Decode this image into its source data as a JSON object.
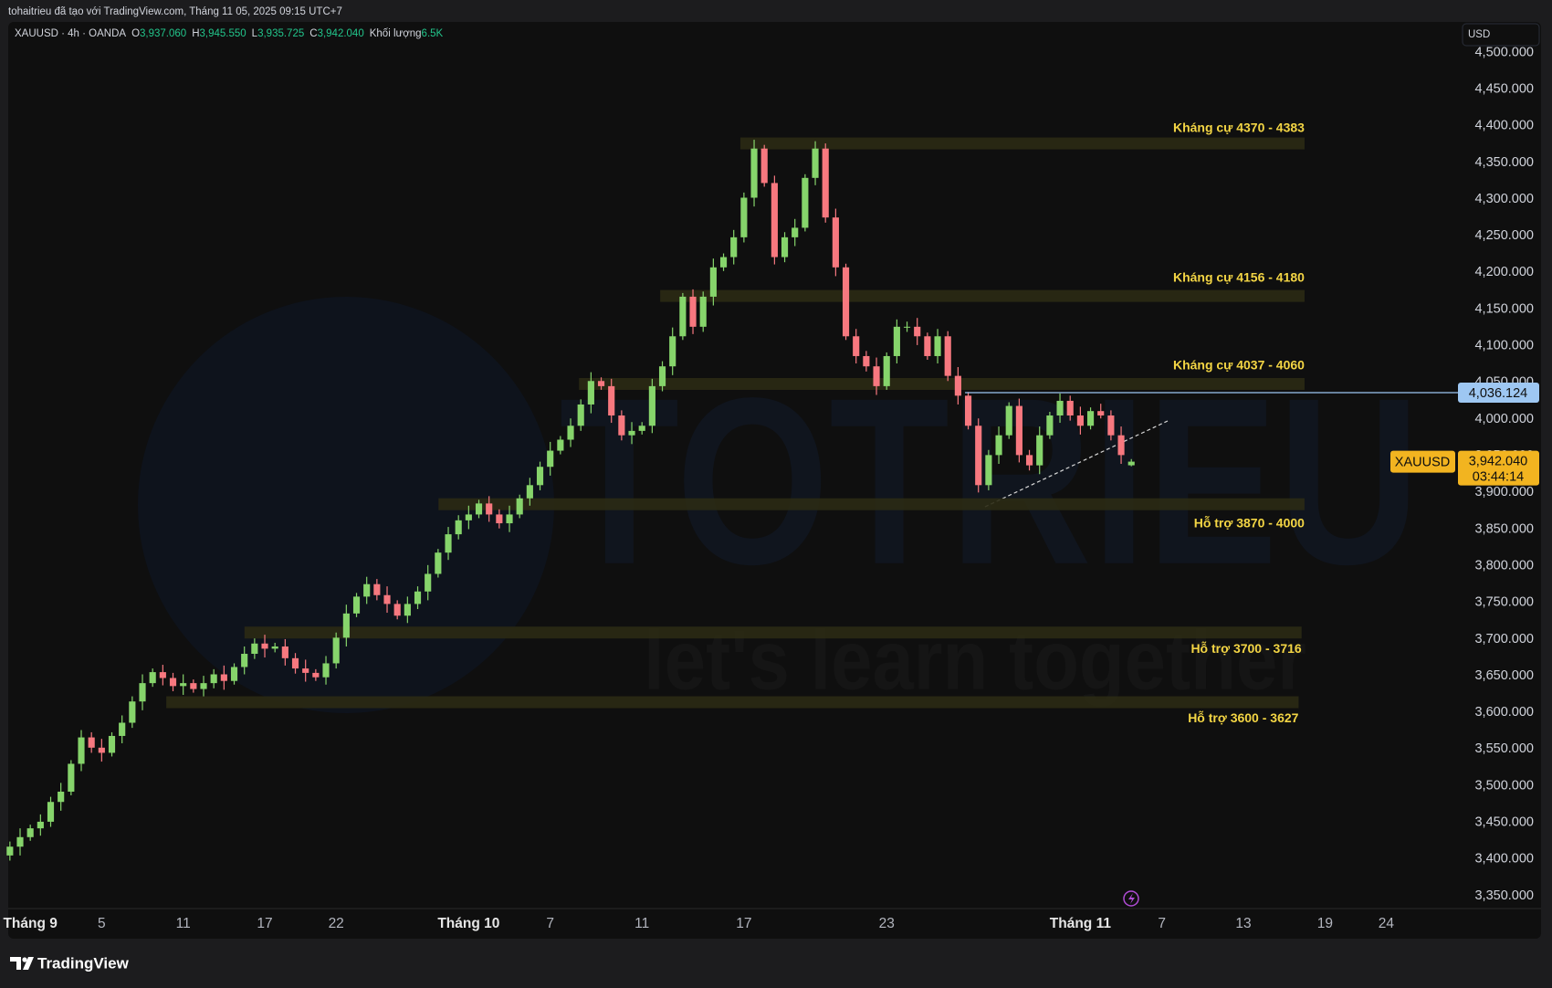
{
  "header": {
    "attribution": "tohaitrieu đã tạo với TradingView.com, Tháng 11 05, 2025 09:15 UTC+7",
    "legend": {
      "symbol": "XAUUSD · 4h · OANDA",
      "items": [
        {
          "key": "O",
          "value": "3,937.060"
        },
        {
          "key": "H",
          "value": "3,945.550"
        },
        {
          "key": "L",
          "value": "3,935.725"
        },
        {
          "key": "C",
          "value": "3,942.040"
        },
        {
          "key": "Khối lượng",
          "value": "6.5K"
        }
      ]
    },
    "currency": "USD"
  },
  "watermark": {
    "title": "TOTRIEU",
    "tagline": "let's learn together"
  },
  "footer": {
    "brand": "TradingView"
  },
  "chart_data": {
    "type": "candlestick",
    "categories": [
      null,
      null,
      "Tháng 9",
      null,
      null,
      null,
      null,
      null,
      null,
      "5",
      null,
      null,
      null,
      null,
      null,
      null,
      null,
      "11",
      null,
      null,
      null,
      null,
      null,
      null,
      null,
      "17",
      null,
      null,
      null,
      null,
      null,
      null,
      "22",
      null,
      null,
      null,
      null,
      null,
      null,
      null,
      null,
      null,
      null,
      null,
      null,
      "Tháng 10",
      null,
      null,
      null,
      null,
      null,
      null,
      null,
      "7",
      null,
      null,
      null,
      null,
      null,
      null,
      null,
      null,
      "11",
      null,
      null,
      null,
      null,
      null,
      null,
      null,
      null,
      null,
      "17",
      null,
      null,
      null,
      null,
      null,
      null,
      null,
      null,
      null,
      null,
      null,
      null,
      null,
      "23",
      null,
      null,
      null,
      null,
      null,
      null,
      null,
      null,
      null,
      null,
      null,
      null,
      null,
      null,
      null,
      null,
      null,
      null,
      "Tháng 11",
      null,
      null,
      null,
      null,
      null,
      null,
      null,
      "7",
      null,
      null,
      null,
      null,
      null,
      null,
      null,
      "13",
      null,
      null,
      null,
      null,
      null,
      null,
      null,
      "19",
      null,
      null,
      null,
      null,
      null,
      "24",
      null,
      null,
      null,
      null,
      null,
      null
    ],
    "series": {
      "open": [
        3405,
        3417,
        3430,
        3442,
        3451,
        3478,
        3492,
        3530,
        3566,
        3552,
        3545,
        3568,
        3586,
        3615,
        3640,
        3655,
        3647,
        3636,
        3640,
        3632,
        3640,
        3652,
        3643,
        3662,
        3680,
        3694,
        3687,
        3690,
        3674,
        3660,
        3654,
        3648,
        3667,
        3702,
        3735,
        3758,
        3775,
        3760,
        3748,
        3732,
        3748,
        3765,
        3789,
        3818,
        3843,
        3862,
        3870,
        3885,
        3870,
        3858,
        3870,
        3892,
        3910,
        3935,
        3957,
        3972,
        3991,
        4020,
        4052,
        4045,
        4005,
        3978,
        3984,
        3991,
        4045,
        4072,
        4113,
        4167,
        4126,
        4167,
        4207,
        4221,
        4248,
        4302,
        4369,
        4322,
        4221,
        4248,
        4261,
        4329,
        4369,
        4275,
        4207,
        4113,
        4086,
        4072,
        4045,
        4086,
        4126,
        4126,
        4113,
        4086,
        4113,
        4059,
        4032,
        3991,
        3910,
        3951,
        3978,
        4018,
        3951,
        3937,
        3978,
        4005,
        4025,
        4005,
        3991,
        4011,
        4005,
        3978,
        3937.06,
        null,
        null,
        null,
        null,
        null,
        null,
        null,
        null,
        null,
        null,
        null,
        null,
        null,
        null,
        null,
        null,
        null,
        null,
        null,
        null,
        null,
        null,
        null,
        null,
        null,
        null,
        null,
        null,
        null,
        null,
        null
      ],
      "high": [
        3424,
        3442,
        3447,
        3461,
        3485,
        3504,
        3535,
        3576,
        3573,
        3564,
        3573,
        3596,
        3622,
        3652,
        3660,
        3665,
        3654,
        3652,
        3645,
        3650,
        3659,
        3664,
        3667,
        3690,
        3701,
        3706,
        3695,
        3700,
        3681,
        3672,
        3659,
        3677,
        3709,
        3747,
        3763,
        3785,
        3782,
        3772,
        3753,
        3758,
        3772,
        3801,
        3823,
        3853,
        3869,
        3882,
        3890,
        3895,
        3877,
        3882,
        3897,
        3920,
        3942,
        3969,
        3977,
        4001,
        4027,
        4064,
        4057,
        4055,
        4012,
        3996,
        3996,
        4055,
        4079,
        4125,
        4172,
        4177,
        4174,
        4219,
        4226,
        4258,
        4309,
        4381,
        4374,
        4332,
        4255,
        4273,
        4334,
        4379,
        4376,
        4287,
        4212,
        4123,
        4093,
        4084,
        4091,
        4136,
        4133,
        4138,
        4118,
        4123,
        4120,
        4071,
        4037,
        4001,
        3958,
        3990,
        4023,
        4028,
        3958,
        3990,
        4010,
        4035,
        4032,
        4017,
        4016,
        4021,
        4012,
        3990,
        3945.55,
        null,
        null,
        null,
        null,
        null,
        null,
        null,
        null,
        null,
        null,
        null,
        null,
        null,
        null,
        null,
        null,
        null,
        null,
        null,
        null,
        null,
        null,
        null,
        null,
        null,
        null,
        null,
        null,
        null,
        null,
        null
      ],
      "low": [
        3398,
        3405,
        3425,
        3432,
        3444,
        3466,
        3487,
        3520,
        3545,
        3533,
        3540,
        3558,
        3579,
        3603,
        3635,
        3637,
        3629,
        3624,
        3627,
        3622,
        3633,
        3631,
        3638,
        3652,
        3673,
        3675,
        3682,
        3664,
        3653,
        3642,
        3643,
        3638,
        3660,
        3690,
        3730,
        3748,
        3753,
        3736,
        3727,
        3722,
        3741,
        3753,
        3784,
        3808,
        3836,
        3850,
        3865,
        3860,
        3851,
        3846,
        3865,
        3882,
        3903,
        3923,
        3952,
        3962,
        3984,
        4008,
        4040,
        3995,
        3971,
        3966,
        3979,
        3981,
        4038,
        4060,
        4108,
        4116,
        4119,
        4155,
        4202,
        4211,
        4241,
        4290,
        4317,
        4211,
        4214,
        4236,
        4256,
        4319,
        4268,
        4195,
        4108,
        4076,
        4065,
        4033,
        4040,
        4076,
        4119,
        4101,
        4081,
        4076,
        4052,
        4020,
        3986,
        3900,
        3903,
        3939,
        3973,
        3941,
        3930,
        3925,
        3973,
        3995,
        3998,
        3979,
        3986,
        4001,
        3971,
        3939,
        3935.725,
        null,
        null,
        null,
        null,
        null,
        null,
        null,
        null,
        null,
        null,
        null,
        null,
        null,
        null,
        null,
        null,
        null,
        null,
        null,
        null,
        null,
        null,
        null,
        null,
        null,
        null,
        null,
        null,
        null,
        null,
        null
      ],
      "close": [
        3417,
        3430,
        3442,
        3451,
        3478,
        3492,
        3530,
        3566,
        3552,
        3545,
        3568,
        3586,
        3615,
        3640,
        3655,
        3647,
        3636,
        3640,
        3632,
        3640,
        3652,
        3643,
        3662,
        3680,
        3694,
        3687,
        3690,
        3674,
        3660,
        3654,
        3648,
        3667,
        3702,
        3735,
        3758,
        3775,
        3760,
        3748,
        3732,
        3748,
        3765,
        3789,
        3818,
        3843,
        3862,
        3870,
        3885,
        3870,
        3858,
        3870,
        3892,
        3910,
        3935,
        3957,
        3972,
        3991,
        4020,
        4052,
        4045,
        4005,
        3978,
        3984,
        3991,
        4045,
        4072,
        4113,
        4167,
        4126,
        4167,
        4207,
        4221,
        4248,
        4302,
        4369,
        4322,
        4221,
        4248,
        4261,
        4329,
        4369,
        4275,
        4207,
        4113,
        4086,
        4072,
        4045,
        4086,
        4126,
        4126,
        4113,
        4086,
        4113,
        4059,
        4032,
        3991,
        3910,
        3951,
        3978,
        4018,
        3951,
        3937,
        3978,
        4005,
        4025,
        4005,
        3991,
        4011,
        4005,
        3978,
        3951,
        3942.04,
        null,
        null,
        null,
        null,
        null,
        null,
        null,
        null,
        null,
        null,
        null,
        null,
        null,
        null,
        null,
        null,
        null,
        null,
        null,
        null,
        null,
        null,
        null,
        null,
        null,
        null,
        null,
        null,
        null,
        null,
        null
      ]
    },
    "up_color": "#86d46b",
    "down_color": "#f7787f",
    "ylim": [
      3332.6,
      4541.7
    ],
    "yticks": [
      {
        "value": 3350,
        "label": "3,350.000"
      },
      {
        "value": 3400,
        "label": "3,400.000"
      },
      {
        "value": 3450,
        "label": "3,450.000"
      },
      {
        "value": 3500,
        "label": "3,500.000"
      },
      {
        "value": 3550,
        "label": "3,550.000"
      },
      {
        "value": 3600,
        "label": "3,600.000"
      },
      {
        "value": 3650,
        "label": "3,650.000"
      },
      {
        "value": 3700,
        "label": "3,700.000"
      },
      {
        "value": 3750,
        "label": "3,750.000"
      },
      {
        "value": 3800,
        "label": "3,800.000"
      },
      {
        "value": 3850,
        "label": "3,850.000"
      },
      {
        "value": 3900,
        "label": "3,900.000"
      },
      {
        "value": 3950,
        "label": "3,950.000"
      },
      {
        "value": 4000,
        "label": "4,000.000"
      },
      {
        "value": 4050,
        "label": "4,050.000"
      },
      {
        "value": 4100,
        "label": "4,100.000"
      },
      {
        "value": 4150,
        "label": "4,150.000"
      },
      {
        "value": 4200,
        "label": "4,200.000"
      },
      {
        "value": 4250,
        "label": "4,250.000"
      },
      {
        "value": 4300,
        "label": "4,300.000"
      },
      {
        "value": 4350,
        "label": "4,350.000"
      },
      {
        "value": 4400,
        "label": "4,400.000"
      },
      {
        "value": 4450,
        "label": "4,450.000"
      },
      {
        "value": 4500,
        "label": "4,500.000"
      }
    ],
    "grid": false,
    "zones": [
      {
        "label": "Kháng cự 4370 - 4383",
        "level": 4376
      },
      {
        "label": "Kháng cự 4156 - 4180",
        "level": 4168
      },
      {
        "label": "Kháng cự 4037 - 4060",
        "level": 4048
      },
      {
        "label": "Hỗ trợ 3870 - 4000",
        "level": 3884
      },
      {
        "label": "Hỗ trợ 3700 - 3716",
        "level": 3709
      },
      {
        "label": "Hỗ trợ 3600 - 3627",
        "level": 3614
      }
    ],
    "zone_color": "#2b2a14",
    "zone_label_color": "#f3d544",
    "price_line": {
      "value": 4036.124,
      "label": "4,036.124",
      "color": "#9ec7f2"
    },
    "last_price": {
      "symbol": "XAUUSD",
      "value": 3942.04,
      "label": "3,942.040",
      "countdown": "03:44:14",
      "color": "#f2b420"
    }
  }
}
